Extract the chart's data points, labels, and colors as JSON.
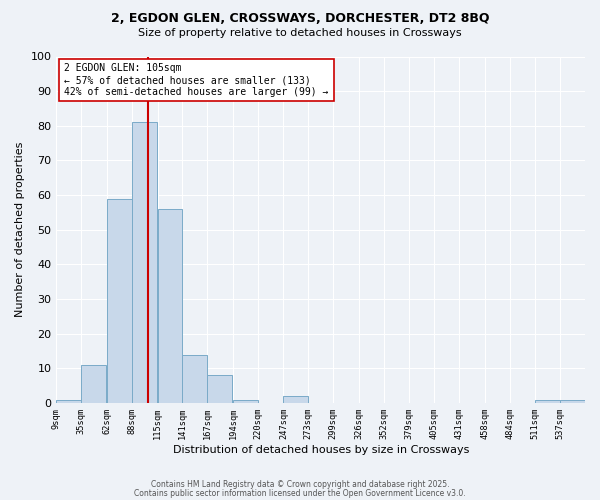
{
  "title1": "2, EGDON GLEN, CROSSWAYS, DORCHESTER, DT2 8BQ",
  "title2": "Size of property relative to detached houses in Crossways",
  "xlabel": "Distribution of detached houses by size in Crossways",
  "ylabel": "Number of detached properties",
  "bin_edges": [
    9,
    35,
    62,
    88,
    115,
    141,
    167,
    194,
    220,
    247,
    273,
    299,
    326,
    352,
    379,
    405,
    431,
    458,
    484,
    511,
    537
  ],
  "bar_values": [
    1,
    11,
    59,
    81,
    56,
    14,
    8,
    1,
    0,
    2,
    0,
    0,
    0,
    0,
    0,
    0,
    0,
    0,
    0,
    1,
    1
  ],
  "bar_color": "#c8d8ea",
  "bar_edgecolor": "#7aaac8",
  "vline_x": 105,
  "vline_color": "#cc0000",
  "annotation_text": "2 EGDON GLEN: 105sqm\n← 57% of detached houses are smaller (133)\n42% of semi-detached houses are larger (99) →",
  "annotation_box_edgecolor": "#cc0000",
  "annotation_box_facecolor": "#ffffff",
  "ylim": [
    0,
    100
  ],
  "background_color": "#eef2f7",
  "grid_color": "#ffffff",
  "footer1": "Contains HM Land Registry data © Crown copyright and database right 2025.",
  "footer2": "Contains public sector information licensed under the Open Government Licence v3.0.",
  "tick_labels": [
    "9sqm",
    "35sqm",
    "62sqm",
    "88sqm",
    "115sqm",
    "141sqm",
    "167sqm",
    "194sqm",
    "220sqm",
    "247sqm",
    "273sqm",
    "299sqm",
    "326sqm",
    "352sqm",
    "379sqm",
    "405sqm",
    "431sqm",
    "458sqm",
    "484sqm",
    "511sqm",
    "537sqm"
  ],
  "yticks": [
    0,
    10,
    20,
    30,
    40,
    50,
    60,
    70,
    80,
    90,
    100
  ]
}
